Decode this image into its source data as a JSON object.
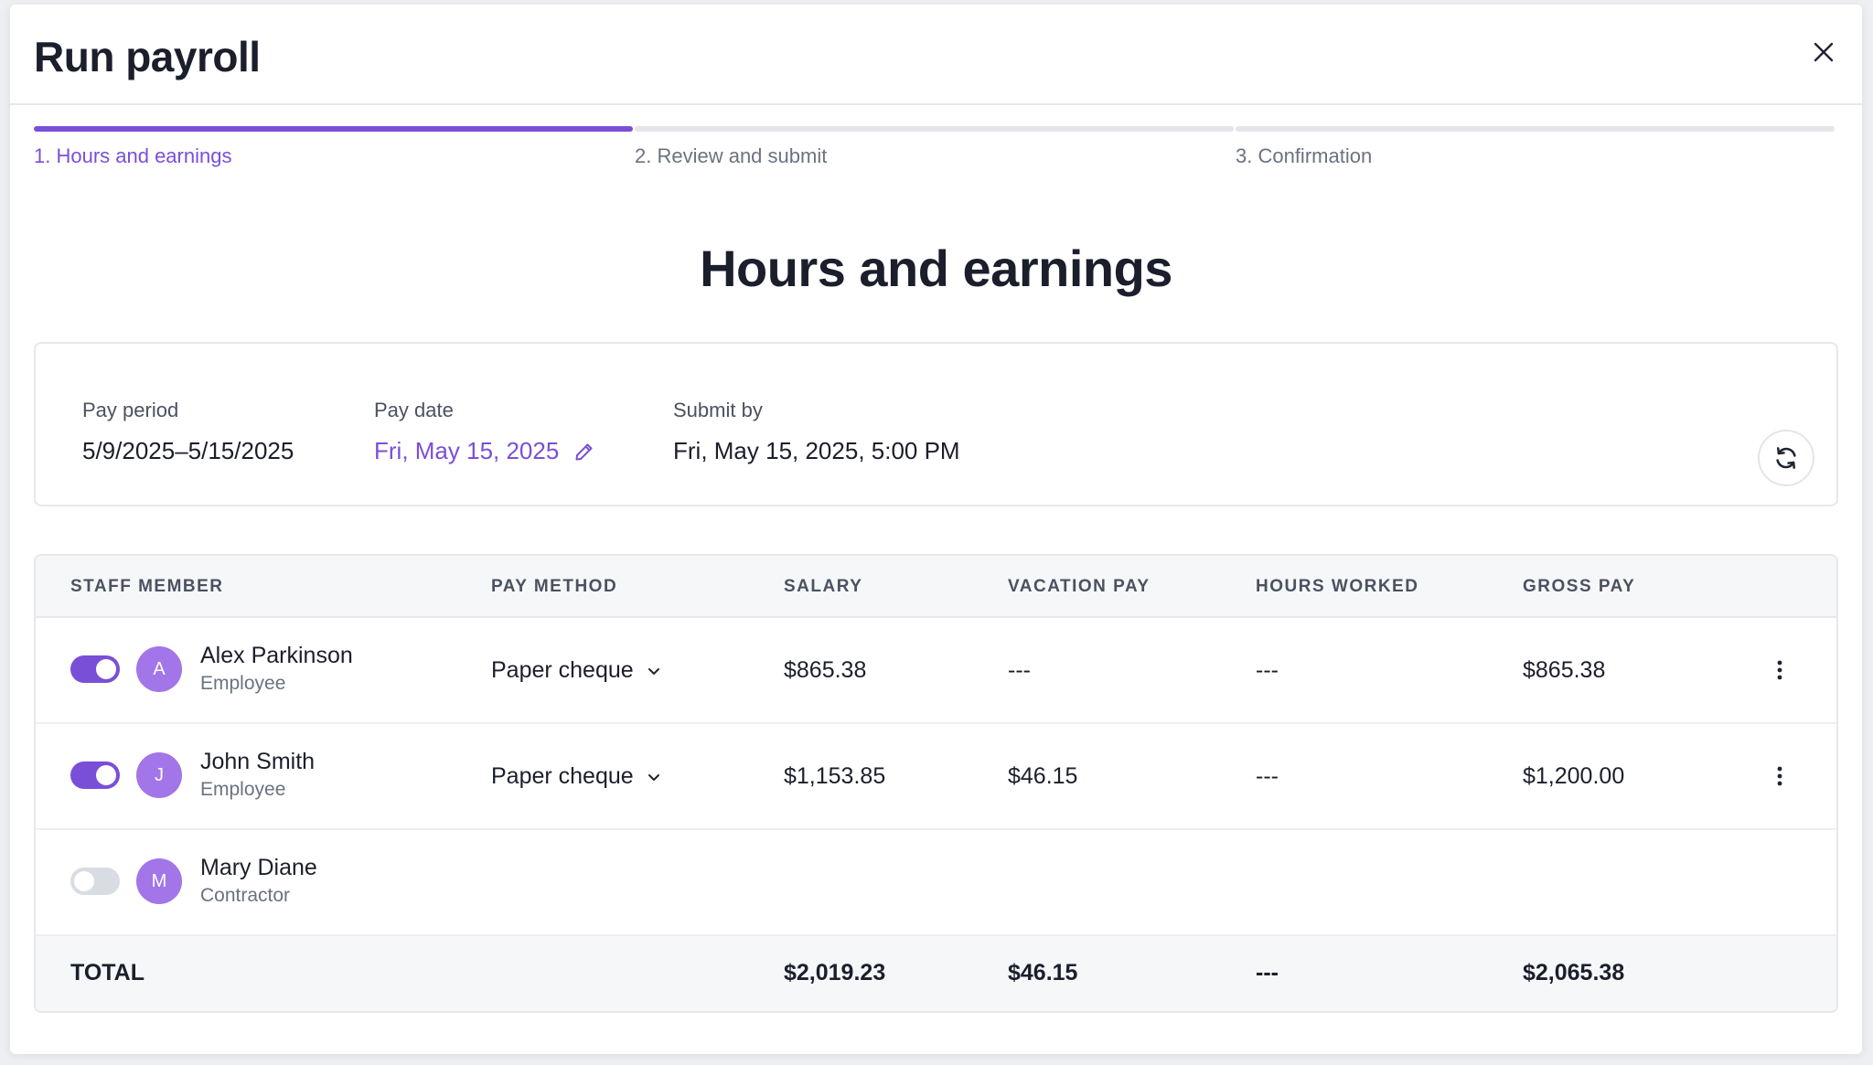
{
  "modal": {
    "title": "Run payroll"
  },
  "stepper": {
    "steps": [
      {
        "label": "1. Hours and earnings",
        "active": true
      },
      {
        "label": "2. Review and submit",
        "active": false
      },
      {
        "label": "3. Confirmation",
        "active": false
      }
    ]
  },
  "section": {
    "title": "Hours and earnings"
  },
  "info": {
    "pay_period": {
      "label": "Pay period",
      "value": "5/9/2025–5/15/2025"
    },
    "pay_date": {
      "label": "Pay date",
      "value": "Fri, May 15, 2025"
    },
    "submit_by": {
      "label": "Submit by",
      "value": "Fri, May 15, 2025, 5:00 PM"
    }
  },
  "table": {
    "headers": {
      "staff": "STAFF MEMBER",
      "method": "PAY METHOD",
      "salary": "SALARY",
      "vacation": "VACATION PAY",
      "hours": "HOURS WORKED",
      "gross": "GROSS PAY"
    },
    "rows": [
      {
        "included": true,
        "initial": "A",
        "name": "Alex Parkinson",
        "role": "Employee",
        "method": "Paper cheque",
        "salary": "$865.38",
        "vacation": "---",
        "hours": "---",
        "gross": "$865.38"
      },
      {
        "included": true,
        "initial": "J",
        "name": "John Smith",
        "role": "Employee",
        "method": "Paper cheque",
        "salary": "$1,153.85",
        "vacation": "$46.15",
        "hours": "---",
        "gross": "$1,200.00"
      },
      {
        "included": false,
        "initial": "M",
        "name": "Mary Diane",
        "role": "Contractor"
      }
    ],
    "total": {
      "label": "TOTAL",
      "salary": "$2,019.23",
      "vacation": "$46.15",
      "hours": "---",
      "gross": "$2,065.38"
    }
  },
  "colors": {
    "accent": "#7a4fd8",
    "avatar": "#a275e8",
    "toggle_off": "#d8dce3"
  },
  "icons": {
    "close": "close-icon",
    "edit": "pencil-icon",
    "refresh": "refresh-icon",
    "dropdown": "chevron-down-icon",
    "more": "more-vertical-icon"
  }
}
